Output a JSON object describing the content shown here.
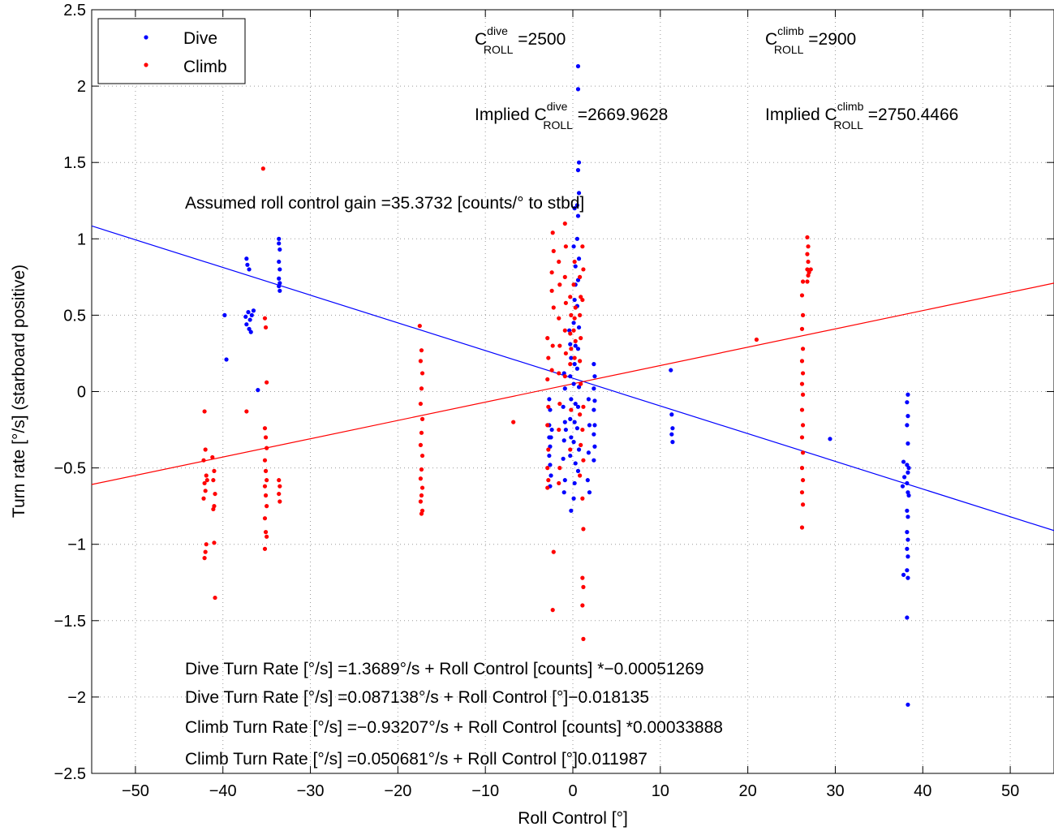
{
  "chart_data": {
    "type": "scatter",
    "xlabel": "Roll Control [°]",
    "ylabel": "Turn rate [°/s] (starboard positive)",
    "xlim": [
      -55,
      55
    ],
    "ylim": [
      -2.5,
      2.5
    ],
    "xticks": [
      -50,
      -40,
      -30,
      -20,
      -10,
      0,
      10,
      20,
      30,
      40,
      50
    ],
    "xtick_labels": [
      "−50",
      "−40",
      "−30",
      "−20",
      "−10",
      "0",
      "10",
      "20",
      "30",
      "40",
      "50"
    ],
    "yticks": [
      -2.5,
      -2,
      -1.5,
      -1,
      -0.5,
      0,
      0.5,
      1,
      1.5,
      2,
      2.5
    ],
    "ytick_labels": [
      "−2.5",
      "−2",
      "−1.5",
      "−1",
      "−0.5",
      "0",
      "0.5",
      "1",
      "1.5",
      "2",
      "2.5"
    ],
    "grid": true,
    "legend_position": "top-left",
    "series": [
      {
        "name": "Dive",
        "color": "#0000ff",
        "points": [
          [
            -39.8,
            0.5
          ],
          [
            -39.6,
            0.21
          ],
          [
            -37.3,
            0.87
          ],
          [
            -37.2,
            0.83
          ],
          [
            -37.0,
            0.8
          ],
          [
            -37.1,
            0.52
          ],
          [
            -36.9,
            0.47
          ],
          [
            -37.3,
            0.44
          ],
          [
            -37.0,
            0.41
          ],
          [
            -36.8,
            0.39
          ],
          [
            -36.7,
            0.5
          ],
          [
            -36.5,
            0.53
          ],
          [
            -37.4,
            0.49
          ],
          [
            -36.0,
            0.01
          ],
          [
            -33.6,
            1.0
          ],
          [
            -33.6,
            0.97
          ],
          [
            -33.5,
            0.93
          ],
          [
            -33.6,
            0.85
          ],
          [
            -33.5,
            0.8
          ],
          [
            -33.6,
            0.74
          ],
          [
            -33.5,
            0.71
          ],
          [
            -33.6,
            0.69
          ],
          [
            -33.5,
            0.66
          ],
          [
            -2.7,
            -0.05
          ],
          [
            -2.6,
            -0.12
          ],
          [
            -2.7,
            -0.22
          ],
          [
            -2.5,
            -0.3
          ],
          [
            -2.6,
            -0.36
          ],
          [
            -2.7,
            -0.42
          ],
          [
            -2.6,
            -0.48
          ],
          [
            -2.5,
            -0.55
          ],
          [
            -2.6,
            -0.62
          ],
          [
            -2.7,
            -0.3
          ],
          [
            -2.4,
            -0.25
          ],
          [
            -1.0,
            0.12
          ],
          [
            -0.9,
            0.02
          ],
          [
            -1.1,
            -0.1
          ],
          [
            -0.9,
            -0.2
          ],
          [
            -1.0,
            -0.32
          ],
          [
            -1.1,
            -0.44
          ],
          [
            -0.9,
            -0.58
          ],
          [
            -1.0,
            -0.66
          ],
          [
            -0.8,
            -0.25
          ],
          [
            -0.3,
            0.31
          ],
          [
            -0.2,
            0.22
          ],
          [
            -0.3,
            0.1
          ],
          [
            -0.2,
            -0.05
          ],
          [
            -0.3,
            -0.18
          ],
          [
            -0.2,
            -0.3
          ],
          [
            -0.3,
            -0.42
          ],
          [
            -0.2,
            -0.78
          ],
          [
            -0.4,
            0.4
          ],
          [
            0.2,
            1.2
          ],
          [
            0.1,
            0.95
          ],
          [
            0.3,
            0.7
          ],
          [
            0.2,
            0.6
          ],
          [
            0.1,
            0.45
          ],
          [
            0.3,
            0.3
          ],
          [
            0.2,
            0.18
          ],
          [
            0.1,
            0.05
          ],
          [
            0.3,
            -0.08
          ],
          [
            0.2,
            -0.2
          ],
          [
            0.1,
            -0.33
          ],
          [
            0.3,
            -0.47
          ],
          [
            0.2,
            -0.6
          ],
          [
            0.1,
            -0.7
          ],
          [
            0.3,
            0.82
          ],
          [
            0.6,
            2.13
          ],
          [
            0.6,
            1.98
          ],
          [
            0.7,
            1.5
          ],
          [
            0.6,
            1.45
          ],
          [
            0.7,
            1.3
          ],
          [
            0.6,
            1.15
          ],
          [
            0.5,
            1.0
          ],
          [
            0.7,
            0.87
          ],
          [
            0.6,
            0.73
          ],
          [
            0.5,
            0.56
          ],
          [
            0.7,
            0.42
          ],
          [
            0.6,
            0.28
          ],
          [
            0.5,
            0.15
          ],
          [
            0.7,
            0.03
          ],
          [
            0.6,
            -0.1
          ],
          [
            0.5,
            -0.24
          ],
          [
            0.7,
            -0.38
          ],
          [
            0.6,
            -0.52
          ],
          [
            0.5,
            1.22
          ],
          [
            1.8,
            -0.05
          ],
          [
            1.9,
            -0.22
          ],
          [
            1.8,
            -0.4
          ],
          [
            1.7,
            -0.58
          ],
          [
            1.9,
            -0.66
          ],
          [
            2.4,
            0.18
          ],
          [
            2.5,
            0.1
          ],
          [
            2.4,
            0.02
          ],
          [
            2.5,
            -0.06
          ],
          [
            2.4,
            -0.12
          ],
          [
            2.5,
            -0.22
          ],
          [
            2.4,
            -0.28
          ],
          [
            2.5,
            -0.36
          ],
          [
            2.4,
            -0.45
          ],
          [
            11.2,
            0.14
          ],
          [
            11.3,
            -0.15
          ],
          [
            11.4,
            -0.24
          ],
          [
            11.3,
            -0.28
          ],
          [
            11.4,
            -0.33
          ],
          [
            29.4,
            -0.31
          ],
          [
            37.8,
            -0.46
          ],
          [
            37.9,
            -0.56
          ],
          [
            37.7,
            -0.62
          ],
          [
            37.8,
            -1.2
          ],
          [
            38.3,
            -0.02
          ],
          [
            38.2,
            -0.07
          ],
          [
            38.3,
            -0.16
          ],
          [
            38.2,
            -0.22
          ],
          [
            38.3,
            -0.34
          ],
          [
            38.2,
            -0.48
          ],
          [
            38.4,
            -0.5
          ],
          [
            38.3,
            -0.53
          ],
          [
            38.2,
            -0.6
          ],
          [
            38.3,
            -0.66
          ],
          [
            38.4,
            -0.68
          ],
          [
            38.2,
            -0.78
          ],
          [
            38.3,
            -0.82
          ],
          [
            38.2,
            -0.92
          ],
          [
            38.3,
            -0.97
          ],
          [
            38.2,
            -1.03
          ],
          [
            38.3,
            -1.08
          ],
          [
            38.2,
            -1.17
          ],
          [
            38.3,
            -1.22
          ],
          [
            38.2,
            -1.48
          ],
          [
            38.3,
            -2.05
          ]
        ]
      },
      {
        "name": "Climb",
        "color": "#ff0000",
        "points": [
          [
            -42.1,
            -0.13
          ],
          [
            -42.0,
            -0.38
          ],
          [
            -42.2,
            -0.45
          ],
          [
            -41.9,
            -0.55
          ],
          [
            -42.1,
            -0.6
          ],
          [
            -42.0,
            -0.65
          ],
          [
            -42.2,
            -0.7
          ],
          [
            -41.9,
            -1.0
          ],
          [
            -42.0,
            -1.05
          ],
          [
            -42.1,
            -1.09
          ],
          [
            -41.8,
            -0.58
          ],
          [
            -41.2,
            -0.43
          ],
          [
            -41.0,
            -0.52
          ],
          [
            -41.1,
            -0.58
          ],
          [
            -40.9,
            -0.67
          ],
          [
            -41.0,
            -0.75
          ],
          [
            -41.1,
            -0.77
          ],
          [
            -41.0,
            -0.99
          ],
          [
            -40.9,
            -1.35
          ],
          [
            -37.3,
            -0.13
          ],
          [
            -35.4,
            1.46
          ],
          [
            -35.2,
            0.48
          ],
          [
            -35.1,
            0.42
          ],
          [
            -35.0,
            0.06
          ],
          [
            -35.2,
            -0.24
          ],
          [
            -35.1,
            -0.3
          ],
          [
            -35.0,
            -0.37
          ],
          [
            -35.2,
            -0.45
          ],
          [
            -35.1,
            -0.52
          ],
          [
            -35.0,
            -0.58
          ],
          [
            -35.2,
            -0.62
          ],
          [
            -35.1,
            -0.68
          ],
          [
            -35.0,
            -0.75
          ],
          [
            -35.2,
            -0.83
          ],
          [
            -35.1,
            -0.92
          ],
          [
            -35.0,
            -0.95
          ],
          [
            -35.2,
            -1.03
          ],
          [
            -33.6,
            -0.58
          ],
          [
            -33.5,
            -0.62
          ],
          [
            -33.6,
            -0.67
          ],
          [
            -33.5,
            -0.72
          ],
          [
            -17.5,
            0.43
          ],
          [
            -17.3,
            0.27
          ],
          [
            -17.4,
            0.2
          ],
          [
            -17.2,
            0.12
          ],
          [
            -17.3,
            0.02
          ],
          [
            -17.4,
            -0.08
          ],
          [
            -17.2,
            -0.18
          ],
          [
            -17.3,
            -0.27
          ],
          [
            -17.4,
            -0.35
          ],
          [
            -17.2,
            -0.42
          ],
          [
            -17.3,
            -0.51
          ],
          [
            -17.4,
            -0.57
          ],
          [
            -17.2,
            -0.63
          ],
          [
            -17.3,
            -0.68
          ],
          [
            -17.4,
            -0.72
          ],
          [
            -17.2,
            -0.78
          ],
          [
            -17.3,
            -0.8
          ],
          [
            -6.8,
            -0.2
          ],
          [
            -2.9,
            0.35
          ],
          [
            -2.8,
            0.22
          ],
          [
            -2.9,
            0.08
          ],
          [
            -2.8,
            -0.1
          ],
          [
            -2.9,
            -0.22
          ],
          [
            -2.8,
            -0.38
          ],
          [
            -2.9,
            -0.5
          ],
          [
            -2.8,
            -0.58
          ],
          [
            -2.9,
            -0.63
          ],
          [
            -2.3,
            1.04
          ],
          [
            -2.2,
            0.92
          ],
          [
            -2.4,
            0.66
          ],
          [
            -2.2,
            0.55
          ],
          [
            -2.3,
            0.3
          ],
          [
            -2.4,
            0.14
          ],
          [
            -2.2,
            -1.05
          ],
          [
            -2.3,
            -1.43
          ],
          [
            -2.4,
            0.78
          ],
          [
            -1.6,
            0.85
          ],
          [
            -1.5,
            0.7
          ],
          [
            -1.6,
            0.48
          ],
          [
            -1.5,
            0.3
          ],
          [
            -1.6,
            0.12
          ],
          [
            -1.5,
            -0.08
          ],
          [
            -1.6,
            -0.25
          ],
          [
            -1.5,
            -0.5
          ],
          [
            -1.6,
            -0.6
          ],
          [
            -0.9,
            1.1
          ],
          [
            -0.8,
            0.95
          ],
          [
            -0.9,
            0.75
          ],
          [
            -0.8,
            0.58
          ],
          [
            -0.9,
            0.4
          ],
          [
            -0.8,
            0.25
          ],
          [
            -0.9,
            0.1
          ],
          [
            -0.3,
            0.62
          ],
          [
            -0.2,
            0.5
          ],
          [
            -0.3,
            0.38
          ],
          [
            -0.2,
            0.28
          ],
          [
            -0.3,
            0.18
          ],
          [
            -0.2,
            -0.12
          ],
          [
            -0.3,
            -0.38
          ],
          [
            0.2,
            0.85
          ],
          [
            0.1,
            0.7
          ],
          [
            0.3,
            0.55
          ],
          [
            0.2,
            0.48
          ],
          [
            0.1,
            0.4
          ],
          [
            0.3,
            0.33
          ],
          [
            0.2,
            0.22
          ],
          [
            0.8,
            0.75
          ],
          [
            0.9,
            0.62
          ],
          [
            0.8,
            0.5
          ],
          [
            0.9,
            0.35
          ],
          [
            0.8,
            0.2
          ],
          [
            0.9,
            0.05
          ],
          [
            0.8,
            -0.15
          ],
          [
            0.9,
            -0.35
          ],
          [
            0.8,
            -0.55
          ],
          [
            1.1,
            0.95
          ],
          [
            1.2,
            0.8
          ],
          [
            1.1,
            0.6
          ],
          [
            1.2,
            -0.1
          ],
          [
            1.1,
            -0.25
          ],
          [
            1.2,
            -0.45
          ],
          [
            1.1,
            -0.7
          ],
          [
            1.2,
            -0.9
          ],
          [
            1.1,
            -1.22
          ],
          [
            1.2,
            -1.28
          ],
          [
            1.1,
            -1.4
          ],
          [
            1.2,
            -1.62
          ],
          [
            21.0,
            0.34
          ],
          [
            26.3,
            0.72
          ],
          [
            26.2,
            0.63
          ],
          [
            26.3,
            0.5
          ],
          [
            26.2,
            0.41
          ],
          [
            26.3,
            0.28
          ],
          [
            26.2,
            0.2
          ],
          [
            26.3,
            0.12
          ],
          [
            26.2,
            0.05
          ],
          [
            26.3,
            -0.02
          ],
          [
            26.2,
            -0.12
          ],
          [
            26.3,
            -0.22
          ],
          [
            26.2,
            -0.3
          ],
          [
            26.3,
            -0.4
          ],
          [
            26.2,
            -0.5
          ],
          [
            26.3,
            -0.58
          ],
          [
            26.2,
            -0.66
          ],
          [
            26.3,
            -0.74
          ],
          [
            26.2,
            -0.89
          ],
          [
            26.8,
            1.01
          ],
          [
            26.9,
            0.95
          ],
          [
            26.8,
            0.9
          ],
          [
            26.9,
            0.85
          ],
          [
            26.8,
            0.8
          ],
          [
            26.9,
            0.76
          ],
          [
            26.8,
            0.72
          ],
          [
            27.0,
            0.78
          ],
          [
            27.2,
            0.8
          ]
        ]
      }
    ],
    "fit_lines": [
      {
        "name": "Dive",
        "color": "#0000ff",
        "intercept": 0.087138,
        "slope": -0.018135
      },
      {
        "name": "Climb",
        "color": "#ff0000",
        "intercept": 0.050681,
        "slope": 0.011987
      }
    ],
    "annotations": {
      "c_dive_main": "C",
      "c_dive_sup": "dive",
      "c_dive_sub": "ROLL",
      "c_dive_value": " =2500",
      "c_climb_main": "C",
      "c_climb_sup": "climb",
      "c_climb_sub": "ROLL",
      "c_climb_value": " =2900",
      "implied_dive_main": "Implied C",
      "implied_dive_sup": "dive",
      "implied_dive_sub": "ROLL",
      "implied_dive_value": " =2669.9628",
      "implied_climb_main": "Implied C",
      "implied_climb_sup": "climb",
      "implied_climb_sub": "ROLL",
      "implied_climb_value": " =2750.4466",
      "gain": "Assumed roll control gain =35.3732 [counts/° to stbd]",
      "eq1": "Dive Turn Rate [°/s] =1.3689°/s + Roll Control [counts] *−0.00051269",
      "eq2": "Dive Turn Rate [°/s] =0.087138°/s + Roll Control [°]−0.018135",
      "eq3": "Climb Turn Rate [°/s] =−0.93207°/s + Roll Control [counts] *0.00033888",
      "eq4": "Climb Turn Rate [°/s] =0.050681°/s + Roll Control [°]0.011987"
    }
  }
}
